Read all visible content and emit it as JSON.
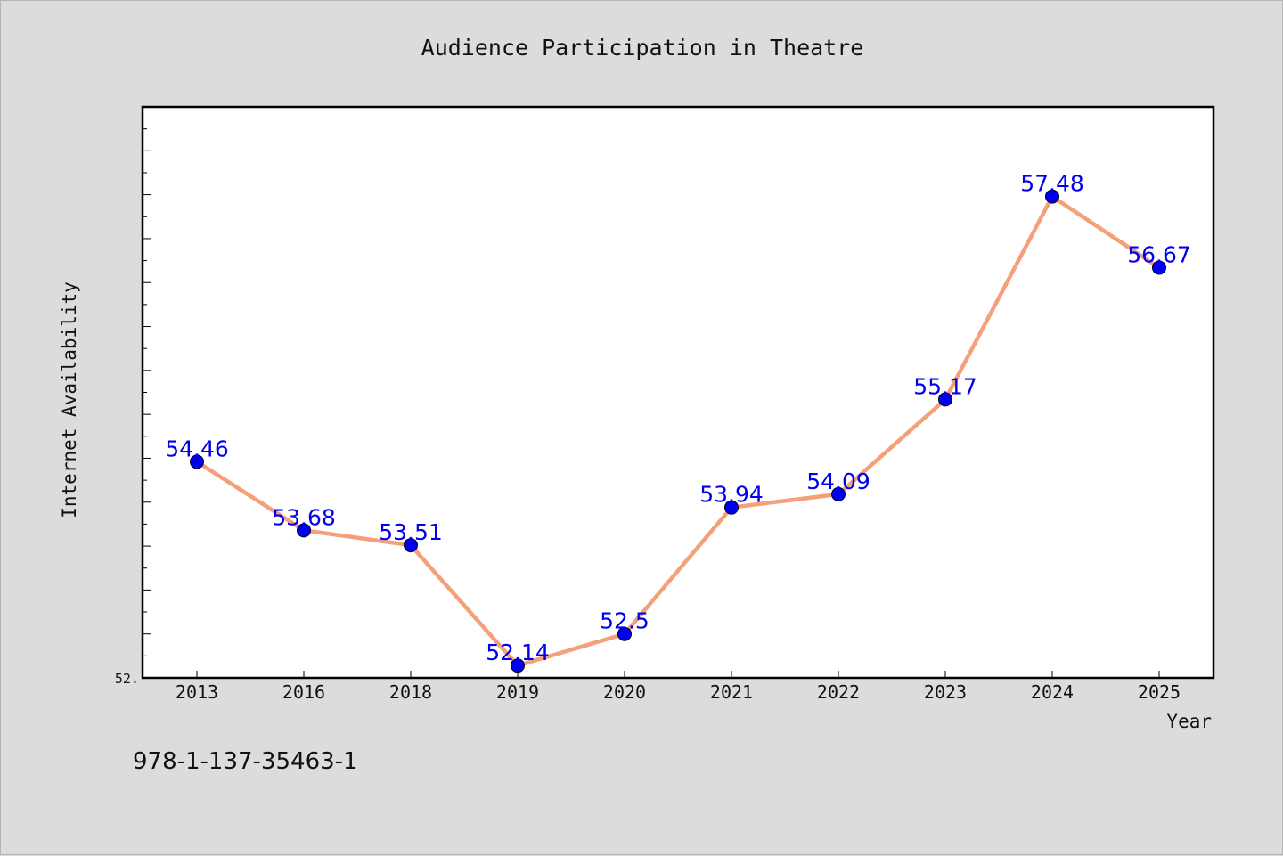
{
  "footer": {
    "code": "978-1-137-35463-1"
  },
  "chart_data": {
    "type": "line",
    "title": "Audience Participation in Theatre",
    "xlabel": "Year",
    "ylabel": "Internet Availability",
    "categories": [
      "2013",
      "2016",
      "2018",
      "2019",
      "2020",
      "2021",
      "2022",
      "2023",
      "2024",
      "2025"
    ],
    "series": [
      {
        "values": [
          54.46,
          53.68,
          53.51,
          52.14,
          52.5,
          53.94,
          54.09,
          55.17,
          57.48,
          56.67
        ],
        "labels": [
          "54.46",
          "53.68",
          "53.51",
          "52.14",
          "52.5",
          "53.94",
          "54.09",
          "55.17",
          "57.48",
          "56.67"
        ],
        "line_color": "#f4a07a",
        "marker_color": "#0000ee",
        "label_color": "#0000ee"
      }
    ],
    "y_tick_label": "52.",
    "ylim": [
      52.0,
      58.5
    ],
    "grid": false,
    "legend": "none"
  }
}
